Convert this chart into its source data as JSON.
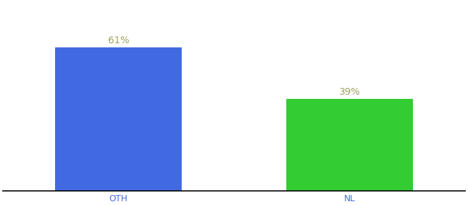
{
  "categories": [
    "OTH",
    "NL"
  ],
  "values": [
    61,
    39
  ],
  "bar_colors": [
    "#4169e1",
    "#33cc33"
  ],
  "label_color": "#a0a060",
  "label_fontsize": 10,
  "tick_fontsize": 9,
  "tick_color": "#4169e1",
  "background_color": "#ffffff",
  "ylim": [
    0,
    80
  ],
  "bar_width": 0.55,
  "label_format": [
    "61%",
    "39%"
  ],
  "xlim": [
    -0.5,
    1.5
  ]
}
